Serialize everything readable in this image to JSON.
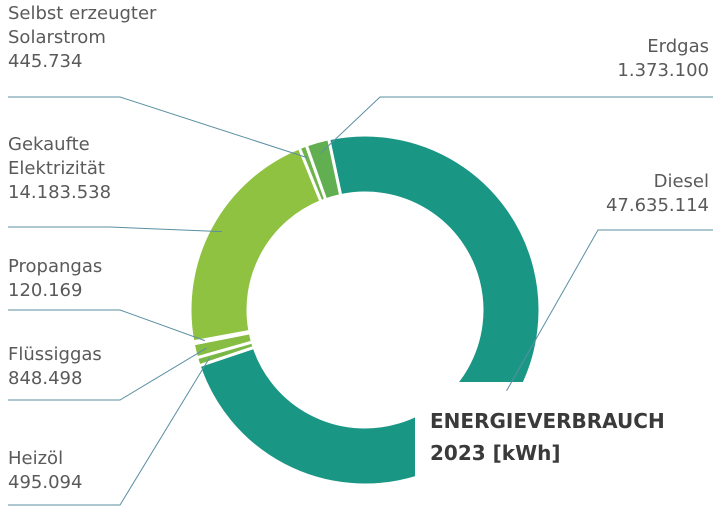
{
  "chart_data": {
    "type": "donut",
    "title": "ENERGIEVERBRAUCH 2023 [kWh]",
    "categories": [
      "Diesel",
      "Heizöl",
      "Flüssiggas",
      "Propangas",
      "Gekaufte Elektrizität",
      "Selbst erzeugter Solarstrom",
      "Erdgas"
    ],
    "values": [
      47635114,
      495094,
      848498,
      120169,
      14183538,
      445734,
      1373100
    ],
    "value_labels": [
      "47.635.114",
      "495.094",
      "848.498",
      "120.169",
      "14.183.538",
      "445.734",
      "1.373.100"
    ],
    "colors": [
      "#1a9684",
      "#79b846",
      "#86bd42",
      "#8ec040",
      "#8fc241",
      "#6fb44b",
      "#62af51"
    ]
  }
}
